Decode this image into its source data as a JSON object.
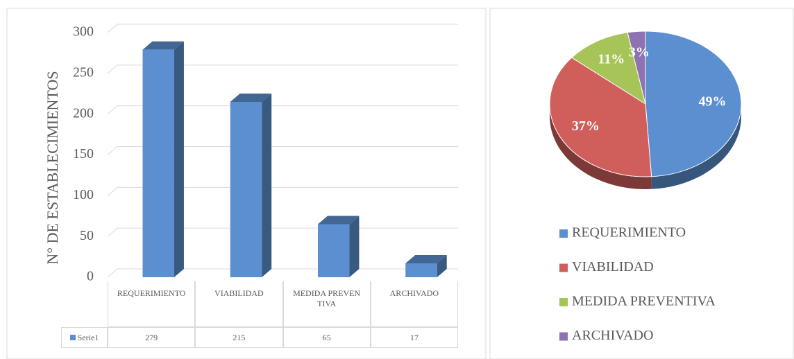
{
  "chart_data": [
    {
      "type": "bar",
      "ylabel": "N° DE ESTABLECIMIENTOS",
      "categories": [
        "REQUERIMIENTO",
        "VIABILIDAD",
        "MEDIDA PREVENTIVA",
        "ARCHIVADO"
      ],
      "series": [
        {
          "name": "Serie1",
          "color": "#5b8fcf",
          "values": [
            279,
            215,
            65,
            17
          ]
        }
      ],
      "ylim": [
        0,
        300
      ],
      "yticks": [
        0,
        50,
        100,
        150,
        200,
        250,
        300
      ],
      "grid": true
    },
    {
      "type": "pie",
      "categories": [
        "REQUERIMIENTO",
        "VIABILIDAD",
        "MEDIDA PREVENTIVA",
        "ARCHIVADO"
      ],
      "values": [
        49,
        37,
        11,
        3
      ],
      "value_labels": [
        "49%",
        "37%",
        "11%",
        "3%"
      ],
      "colors": [
        "#5b8fcf",
        "#d05f5b",
        "#a6c457",
        "#8e73b0"
      ]
    }
  ]
}
